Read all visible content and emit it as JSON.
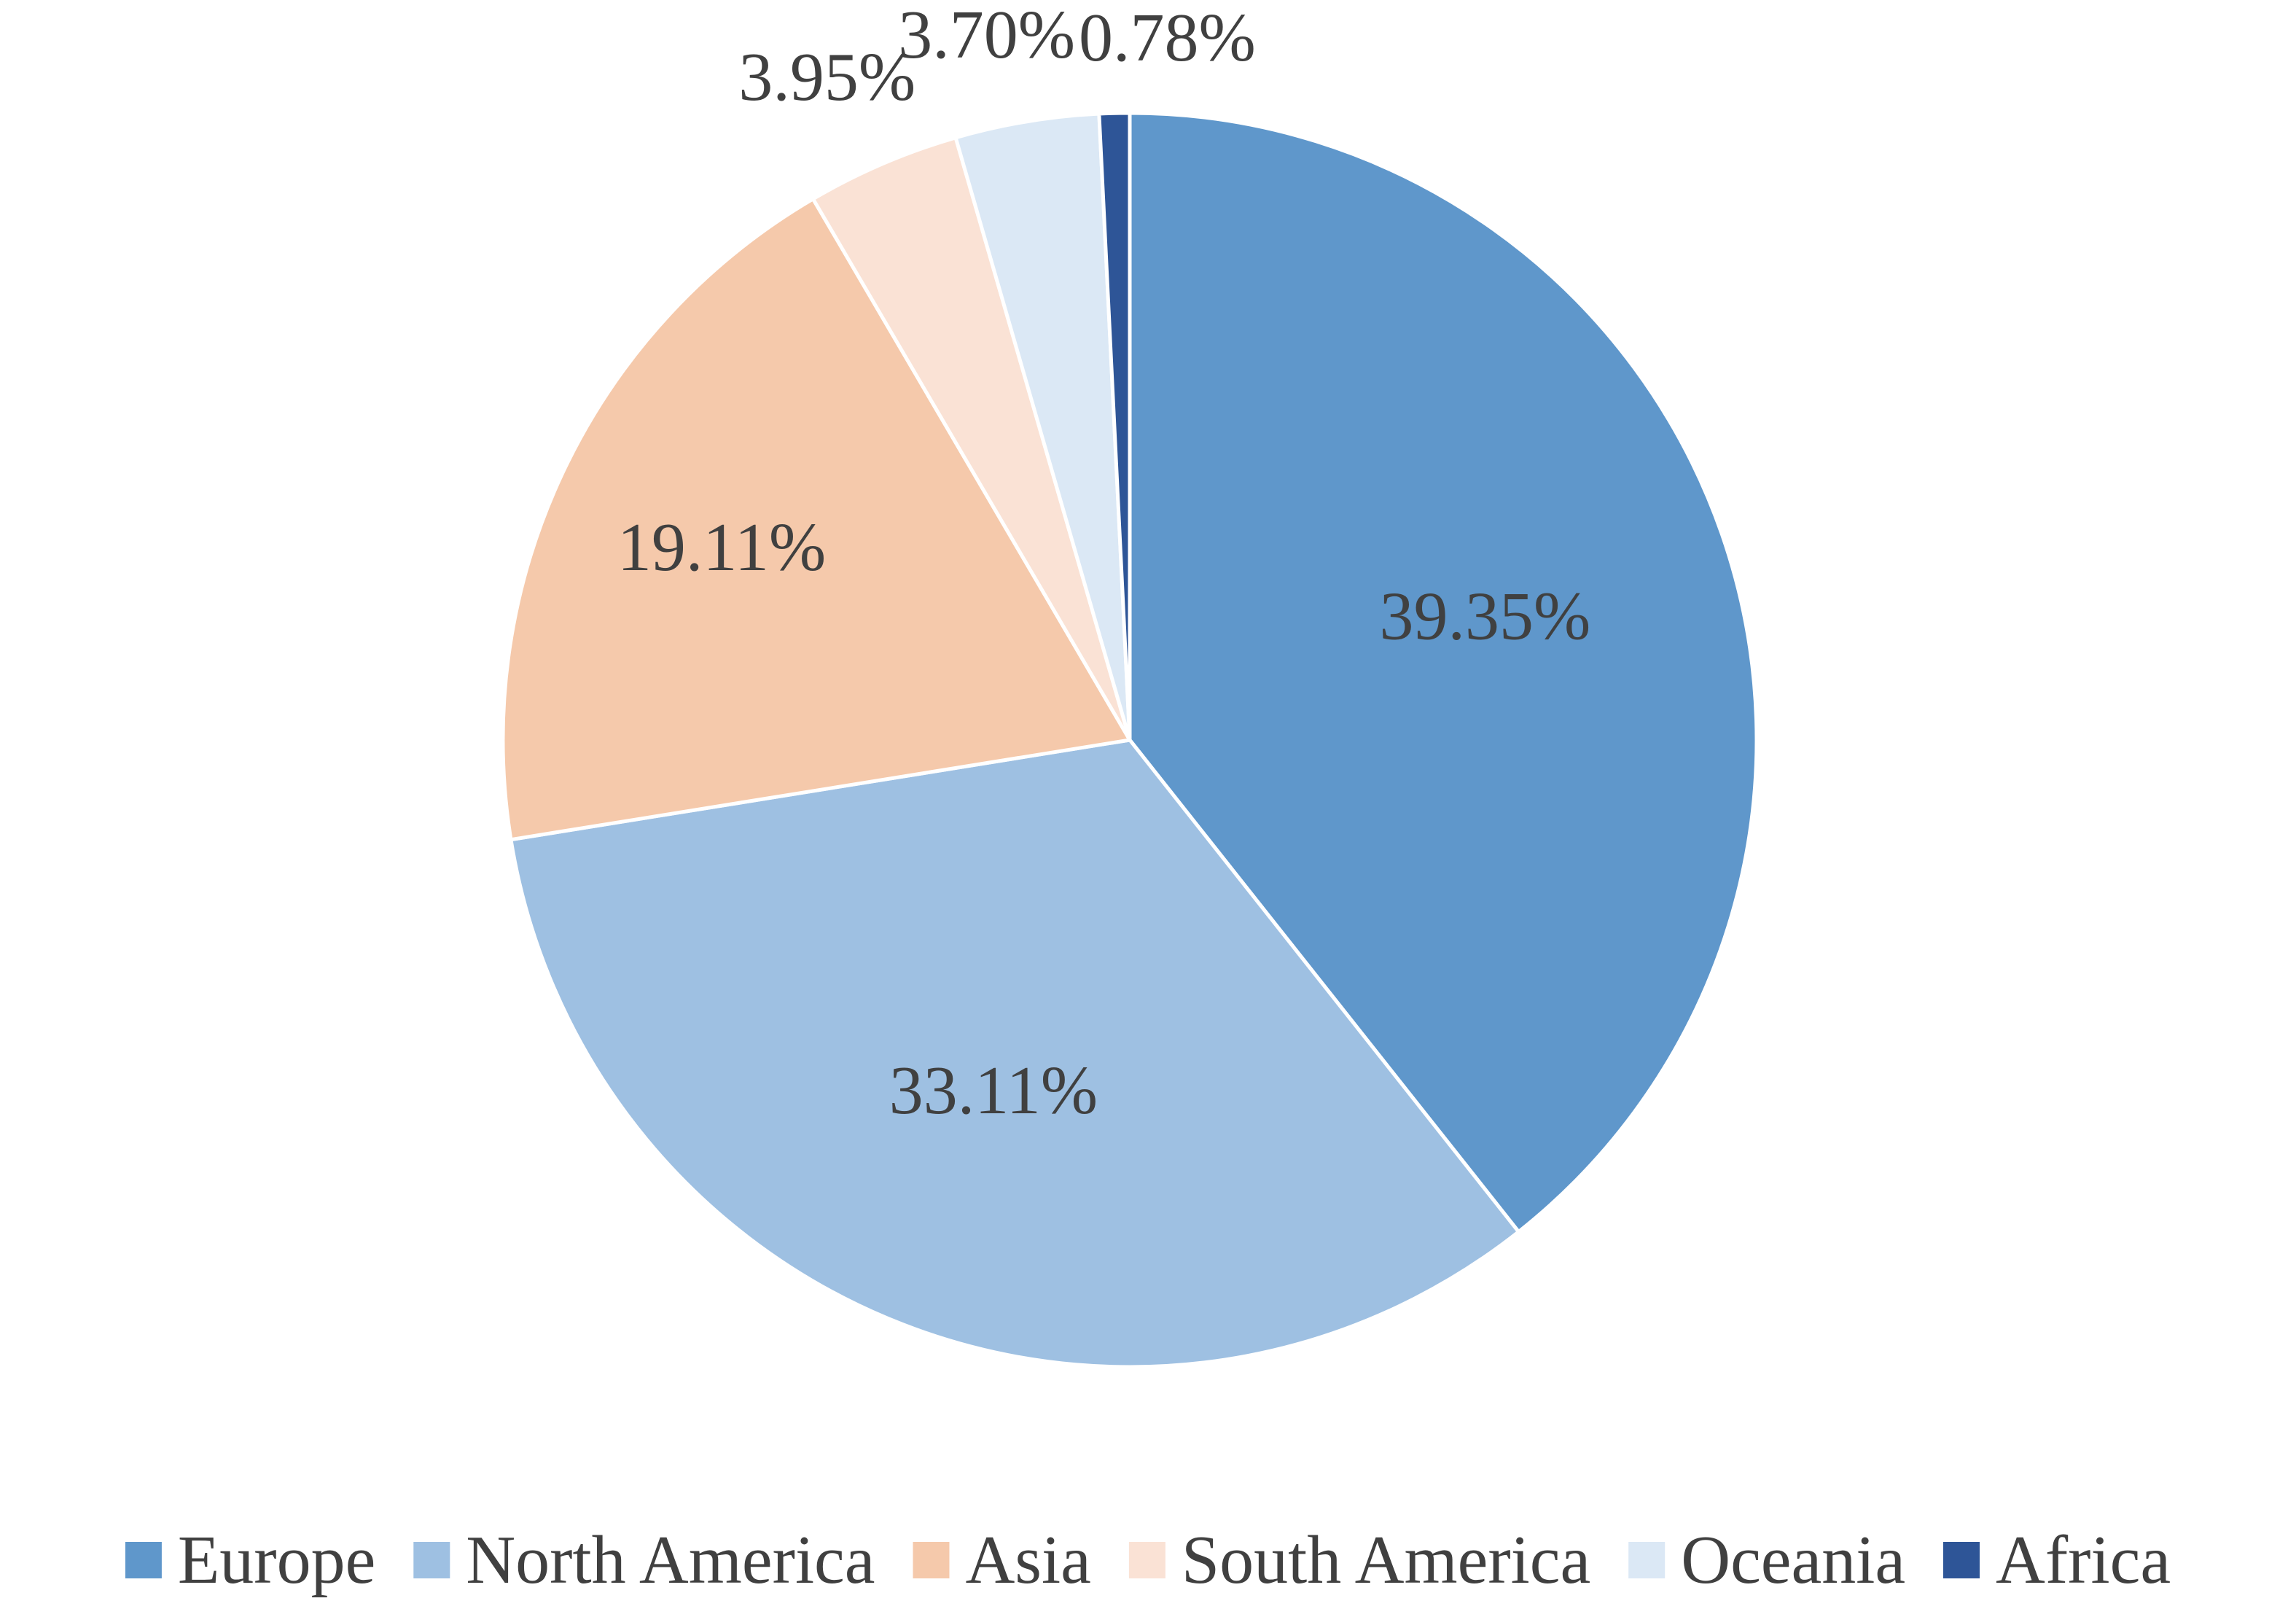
{
  "chart_data": {
    "type": "pie",
    "title": "",
    "categories": [
      "Europe",
      "North America",
      "Asia",
      "South America",
      "Oceania",
      "Africa"
    ],
    "values": [
      39.35,
      33.11,
      19.11,
      3.95,
      3.7,
      0.78
    ],
    "value_labels": [
      "39.35%",
      "33.11%",
      "19.11%",
      "3.95%",
      "3.70%",
      "0.78%"
    ],
    "colors": [
      "#5f97cb",
      "#9ec0e2",
      "#f5c9ab",
      "#fae2d5",
      "#dbe8f5",
      "#2e5597"
    ],
    "start": "12 o'clock",
    "direction": "clockwise",
    "legend_position": "bottom",
    "legend": [
      "Europe",
      "North America",
      "Asia",
      "South America",
      "Oceania",
      "Africa"
    ]
  }
}
